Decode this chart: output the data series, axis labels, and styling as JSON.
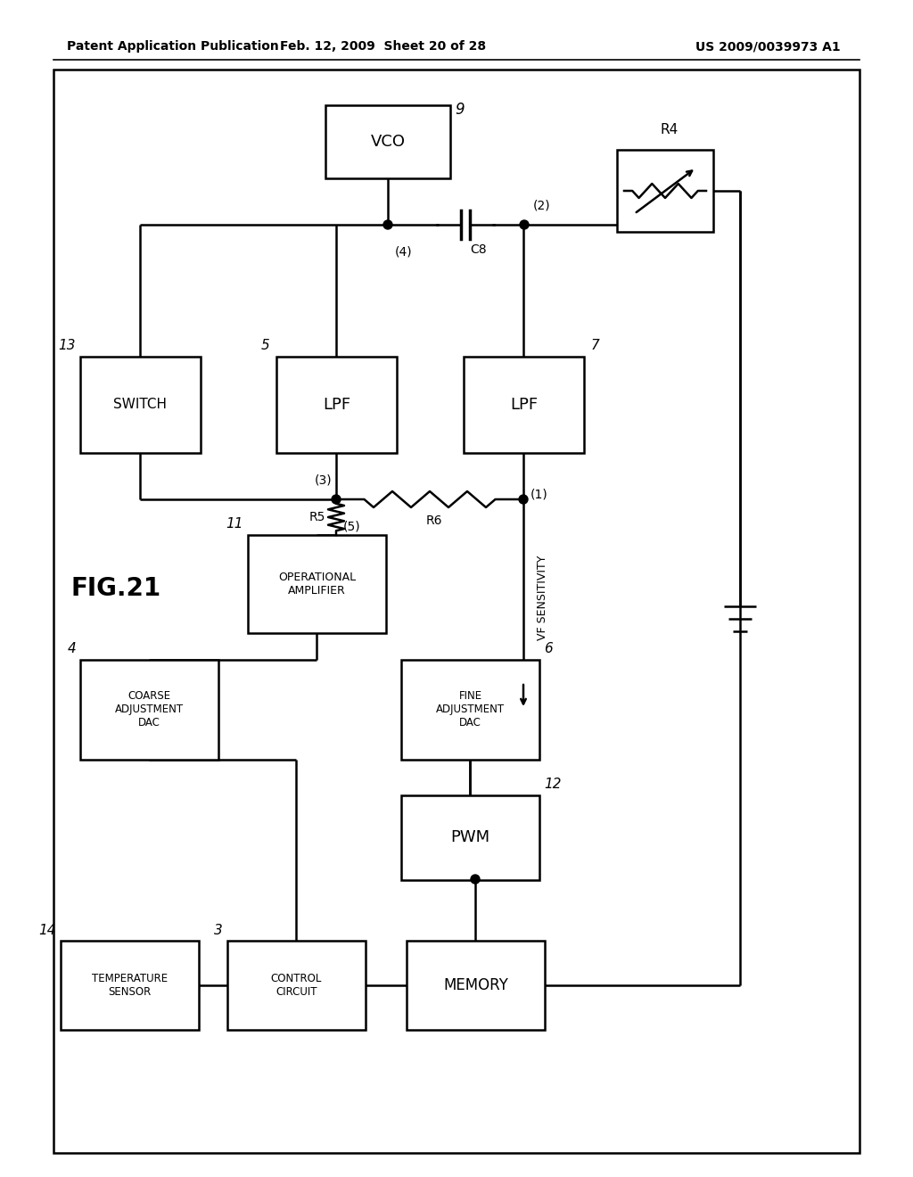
{
  "header_left": "Patent Application Publication",
  "header_mid": "Feb. 12, 2009  Sheet 20 of 28",
  "header_right": "US 2009/0039973 A1",
  "background_color": "#ffffff",
  "fig_label": "FIG.21",
  "boxes": {
    "VCO": [
      0.38,
      0.855,
      0.13,
      0.075,
      "VCO",
      12
    ],
    "SWITCH": [
      0.09,
      0.635,
      0.13,
      0.095,
      "SWITCH",
      10
    ],
    "LPF5": [
      0.3,
      0.635,
      0.13,
      0.095,
      "LPF",
      12
    ],
    "LPF7": [
      0.52,
      0.635,
      0.13,
      0.095,
      "LPF",
      12
    ],
    "OPAMP": [
      0.28,
      0.455,
      0.15,
      0.1,
      "OPERATIONAL\nAMPLIFIER",
      9
    ],
    "COARSE": [
      0.09,
      0.33,
      0.15,
      0.105,
      "COARSE\nADJUSTMENT\nDAC",
      8.5
    ],
    "FINE": [
      0.44,
      0.33,
      0.15,
      0.105,
      "FINE\nADJUSTMENT\nDAC",
      8.5
    ],
    "PWM": [
      0.44,
      0.2,
      0.15,
      0.09,
      "PWM",
      12
    ],
    "TEMP": [
      0.065,
      0.055,
      0.15,
      0.092,
      "TEMPERATURE\nSENSOR",
      8.5
    ],
    "CTRL": [
      0.255,
      0.055,
      0.15,
      0.092,
      "CONTROL\nCIRCUIT",
      8.5
    ],
    "MEM": [
      0.455,
      0.055,
      0.15,
      0.092,
      "MEMORY",
      12
    ]
  }
}
